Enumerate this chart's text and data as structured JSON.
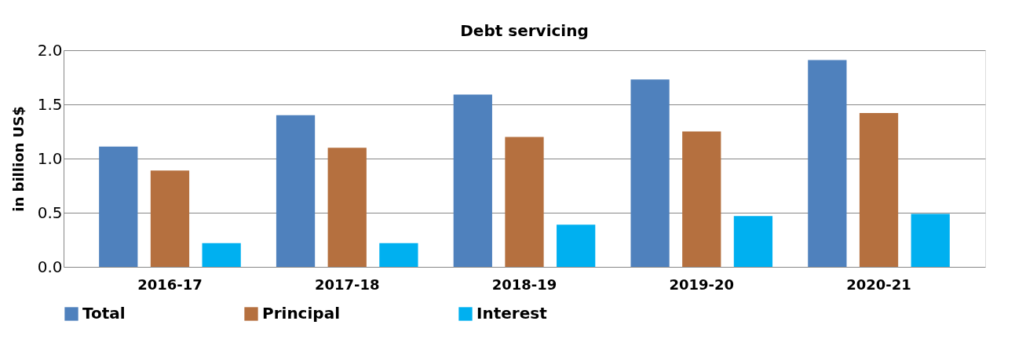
{
  "chart_data": {
    "type": "bar",
    "title": "Debt servicing",
    "ylabel": "in billion US$",
    "categories": [
      "2016-17",
      "2017-18",
      "2018-19",
      "2019-20",
      "2020-21"
    ],
    "series": [
      {
        "name": "Total",
        "color": "#4f81bd",
        "values": [
          1.11,
          1.4,
          1.59,
          1.73,
          1.91
        ]
      },
      {
        "name": "Principal",
        "color": "#b5703f",
        "values": [
          0.89,
          1.1,
          1.2,
          1.25,
          1.42
        ]
      },
      {
        "name": "Interest",
        "color": "#00b0f0",
        "values": [
          0.22,
          0.22,
          0.39,
          0.47,
          0.49
        ]
      }
    ],
    "ylim": [
      0,
      2.0
    ],
    "yticks": [
      {
        "value": 0,
        "label": "0.0"
      },
      {
        "value": 0.5,
        "label": "0.5"
      },
      {
        "value": 1,
        "label": "1.0"
      },
      {
        "value": 1.5,
        "label": "1.5"
      },
      {
        "value": 2,
        "label": "2.0"
      }
    ],
    "grid": "y",
    "legend": "bottom"
  }
}
